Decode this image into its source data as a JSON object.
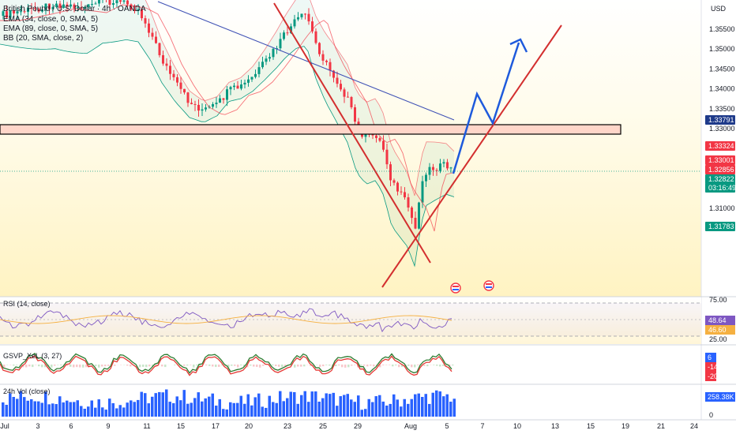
{
  "instrument": {
    "title": "British Pound / U.S. Dollar · 4h · OANDA",
    "currency": "USD"
  },
  "indicators_legend": [
    "EMA (34, close, 0, SMA, 5)",
    "EMA (89, close, 0, SMA, 5)",
    "BB (20, SMA, close, 2)"
  ],
  "price_axis": {
    "ticks": [
      "1.35500",
      "1.35000",
      "1.34500",
      "1.34000",
      "1.33500",
      "1.33000",
      "1.32500",
      "1.32000",
      "1.31500",
      "1.31000"
    ],
    "tags": [
      {
        "text": "1.33791",
        "color": "#1e3a8a"
      },
      {
        "text": "1.33324",
        "color": "#f23645"
      },
      {
        "text": "1.33001",
        "color": "#f23645"
      },
      {
        "text": "1.32856",
        "color": "#f23645"
      },
      {
        "text": "1.32822",
        "color": "#089981"
      },
      {
        "text": "03:16:49",
        "color": "#089981"
      },
      {
        "text": "1.31783",
        "color": "#089981"
      }
    ]
  },
  "rsi_pane": {
    "label": "RSI (14, close)",
    "ticks": [
      "75.00",
      "25.00"
    ],
    "tags": [
      {
        "text": "48.64",
        "color": "#7e57c2"
      },
      {
        "text": "46.60",
        "color": "#f5b041"
      }
    ]
  },
  "osc_pane": {
    "label": "GSVP_XeL (3, 27)",
    "tags": [
      {
        "text": "6",
        "color": "#2962ff"
      },
      {
        "text": "-14",
        "color": "#f23645"
      },
      {
        "text": "-20",
        "color": "#f23645"
      }
    ]
  },
  "vol_pane": {
    "label": "24h Vol (close)",
    "ticks": [
      "0"
    ],
    "tags": [
      {
        "text": "258.38K",
        "color": "#2962ff"
      }
    ]
  },
  "time_axis": {
    "labels": [
      "Jul",
      "3",
      "6",
      "9",
      "11",
      "15",
      "17",
      "20",
      "23",
      "25",
      "29",
      "Aug",
      "5",
      "7",
      "10",
      "13",
      "15",
      "19",
      "21",
      "24"
    ]
  },
  "colors": {
    "up_candle": "#089981",
    "down_candle": "#f23645",
    "ema34": "#f23645",
    "ema89": "#3f51b5",
    "bb_band": "#089981",
    "zone_fill": "#ffd6c9",
    "trend_line": "#d32f2f",
    "projection": "#1e5adc"
  }
}
